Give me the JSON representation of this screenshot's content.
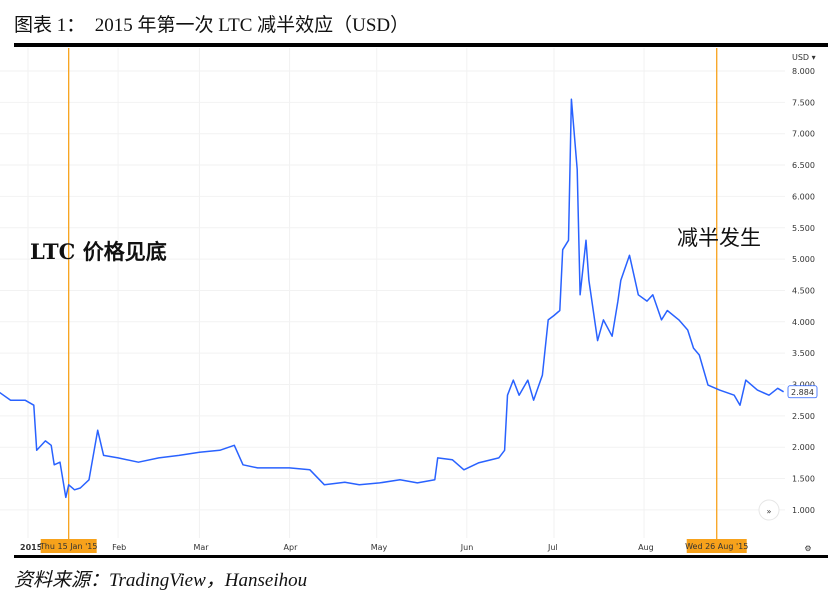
{
  "title": "图表 1：  2015 年第一次 LTC 减半效应（USD）",
  "caption": "资料来源：TradingView，Hanseihou",
  "chart_data": {
    "type": "line",
    "title": "",
    "xlabel": "",
    "ylabel": "",
    "currency_label": "USD",
    "ylim": [
      0.7,
      8.2
    ],
    "y_ticks": [
      "1.000",
      "1.500",
      "2.000",
      "2.500",
      "3.000",
      "3.500",
      "4.000",
      "4.500",
      "5.000",
      "5.500",
      "6.000",
      "6.500",
      "7.000",
      "7.500",
      "8.000"
    ],
    "x_ticks": [
      {
        "date": "2015-01-01",
        "label": "2015"
      },
      {
        "date": "2015-02-01",
        "label": "Feb"
      },
      {
        "date": "2015-03-01",
        "label": "Mar"
      },
      {
        "date": "2015-04-01",
        "label": "Apr"
      },
      {
        "date": "2015-05-01",
        "label": "May"
      },
      {
        "date": "2015-06-01",
        "label": "Jun"
      },
      {
        "date": "2015-07-01",
        "label": "Jul"
      },
      {
        "date": "2015-08-01",
        "label": "Aug"
      }
    ],
    "grid": true,
    "line_color": "#2962ff",
    "last_price": "2.884",
    "markers": [
      {
        "date": "2015-01-15",
        "label": "Thu 15 Jan '15",
        "annotation": "LTC 价格见底",
        "color": "#f7a21b"
      },
      {
        "date": "2015-08-26",
        "label": "Wed 26 Aug '15",
        "annotation": "减半发生",
        "color": "#f7a21b"
      }
    ],
    "series": [
      {
        "points": [
          [
            "2014-12-22",
            2.88
          ],
          [
            "2014-12-26",
            2.75
          ],
          [
            "2014-12-31",
            2.75
          ],
          [
            "2015-01-03",
            2.67
          ],
          [
            "2015-01-04",
            1.95
          ],
          [
            "2015-01-07",
            2.1
          ],
          [
            "2015-01-09",
            2.03
          ],
          [
            "2015-01-10",
            1.72
          ],
          [
            "2015-01-12",
            1.76
          ],
          [
            "2015-01-14",
            1.2
          ],
          [
            "2015-01-15",
            1.4
          ],
          [
            "2015-01-17",
            1.32
          ],
          [
            "2015-01-19",
            1.35
          ],
          [
            "2015-01-22",
            1.48
          ],
          [
            "2015-01-25",
            2.27
          ],
          [
            "2015-01-27",
            1.87
          ],
          [
            "2015-02-01",
            1.83
          ],
          [
            "2015-02-08",
            1.76
          ],
          [
            "2015-02-15",
            1.83
          ],
          [
            "2015-02-22",
            1.87
          ],
          [
            "2015-03-01",
            1.92
          ],
          [
            "2015-03-08",
            1.95
          ],
          [
            "2015-03-13",
            2.03
          ],
          [
            "2015-03-16",
            1.72
          ],
          [
            "2015-03-21",
            1.67
          ],
          [
            "2015-04-01",
            1.67
          ],
          [
            "2015-04-08",
            1.64
          ],
          [
            "2015-04-13",
            1.4
          ],
          [
            "2015-04-20",
            1.44
          ],
          [
            "2015-04-25",
            1.4
          ],
          [
            "2015-05-02",
            1.43
          ],
          [
            "2015-05-09",
            1.48
          ],
          [
            "2015-05-15",
            1.43
          ],
          [
            "2015-05-21",
            1.48
          ],
          [
            "2015-05-22",
            1.83
          ],
          [
            "2015-05-27",
            1.8
          ],
          [
            "2015-05-31",
            1.64
          ],
          [
            "2015-06-05",
            1.75
          ],
          [
            "2015-06-12",
            1.83
          ],
          [
            "2015-06-14",
            1.95
          ],
          [
            "2015-06-15",
            2.83
          ],
          [
            "2015-06-17",
            3.07
          ],
          [
            "2015-06-19",
            2.83
          ],
          [
            "2015-06-22",
            3.07
          ],
          [
            "2015-06-24",
            2.75
          ],
          [
            "2015-06-27",
            3.15
          ],
          [
            "2015-06-29",
            4.03
          ],
          [
            "2015-07-01",
            4.1
          ],
          [
            "2015-07-03",
            4.18
          ],
          [
            "2015-07-04",
            5.15
          ],
          [
            "2015-07-06",
            5.3
          ],
          [
            "2015-07-07",
            7.55
          ],
          [
            "2015-07-09",
            6.43
          ],
          [
            "2015-07-10",
            4.43
          ],
          [
            "2015-07-12",
            5.3
          ],
          [
            "2015-07-13",
            4.66
          ],
          [
            "2015-07-16",
            3.7
          ],
          [
            "2015-07-18",
            4.03
          ],
          [
            "2015-07-21",
            3.77
          ],
          [
            "2015-07-23",
            4.33
          ],
          [
            "2015-07-24",
            4.66
          ],
          [
            "2015-07-27",
            5.06
          ],
          [
            "2015-07-30",
            4.43
          ],
          [
            "2015-08-02",
            4.33
          ],
          [
            "2015-08-04",
            4.43
          ],
          [
            "2015-08-07",
            4.03
          ],
          [
            "2015-08-09",
            4.18
          ],
          [
            "2015-08-13",
            4.03
          ],
          [
            "2015-08-16",
            3.87
          ],
          [
            "2015-08-18",
            3.58
          ],
          [
            "2015-08-20",
            3.47
          ],
          [
            "2015-08-23",
            2.99
          ],
          [
            "2015-08-27",
            2.91
          ],
          [
            "2015-09-01",
            2.83
          ],
          [
            "2015-09-03",
            2.67
          ],
          [
            "2015-09-05",
            3.07
          ],
          [
            "2015-09-09",
            2.91
          ],
          [
            "2015-09-13",
            2.83
          ],
          [
            "2015-09-16",
            2.94
          ],
          [
            "2015-09-18",
            2.884
          ]
        ]
      }
    ]
  }
}
